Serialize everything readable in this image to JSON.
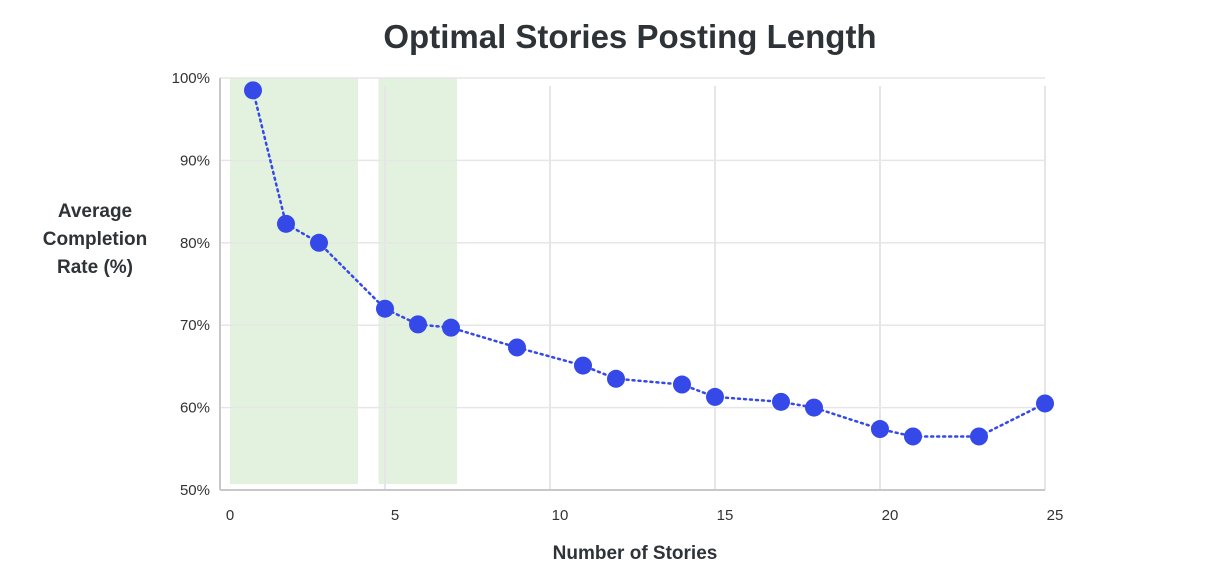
{
  "chart_data": {
    "type": "line",
    "title": "Optimal Stories Posting Length",
    "xlabel": "Number of Stories",
    "ylabel": "Average\nCompletion\nRate (%)",
    "x_ticks": [
      "0",
      "5",
      "10",
      "15",
      "20",
      "25"
    ],
    "y_ticks": [
      "50%",
      "60%",
      "70%",
      "80%",
      "90%",
      "100%"
    ],
    "xlim": [
      0,
      25
    ],
    "ylim": [
      50,
      100
    ],
    "grid": true,
    "highlight_ranges": [
      [
        0,
        4.0
      ],
      [
        4.5,
        7.0
      ]
    ],
    "series": [
      {
        "x": [
          1,
          2,
          3,
          5,
          6,
          7,
          9,
          11,
          12,
          14,
          15,
          17,
          18,
          20,
          21,
          23,
          25
        ],
        "y": [
          98.5,
          82.3,
          80.0,
          72.0,
          70.1,
          69.7,
          67.3,
          65.1,
          63.5,
          62.8,
          61.3,
          60.7,
          60.0,
          57.4,
          56.5,
          56.5,
          60.5
        ]
      }
    ],
    "colors": {
      "line": "#3548e8",
      "point": "#3548e8",
      "highlight": "#e2f2df",
      "grid": "#e6e6e6",
      "axis": "#c8c8c8"
    }
  }
}
